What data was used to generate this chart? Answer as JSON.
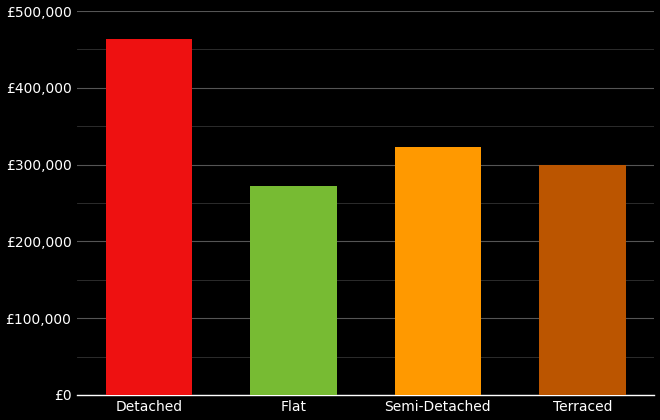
{
  "categories": [
    "Detached",
    "Flat",
    "Semi-Detached",
    "Terraced"
  ],
  "values": [
    463000,
    272000,
    323000,
    300000
  ],
  "bar_colors": [
    "#ee1111",
    "#77bb33",
    "#ff9900",
    "#bb5500"
  ],
  "background_color": "#000000",
  "text_color": "#ffffff",
  "grid_color_major": "#555555",
  "grid_color_minor": "#333333",
  "ylim": [
    0,
    500000
  ],
  "yticks_major": [
    0,
    100000,
    200000,
    300000,
    400000,
    500000
  ],
  "yticks_minor": [
    50000,
    150000,
    250000,
    350000,
    450000
  ],
  "tick_label_fontsize": 10,
  "xlabel_fontsize": 10,
  "bar_width": 0.6
}
